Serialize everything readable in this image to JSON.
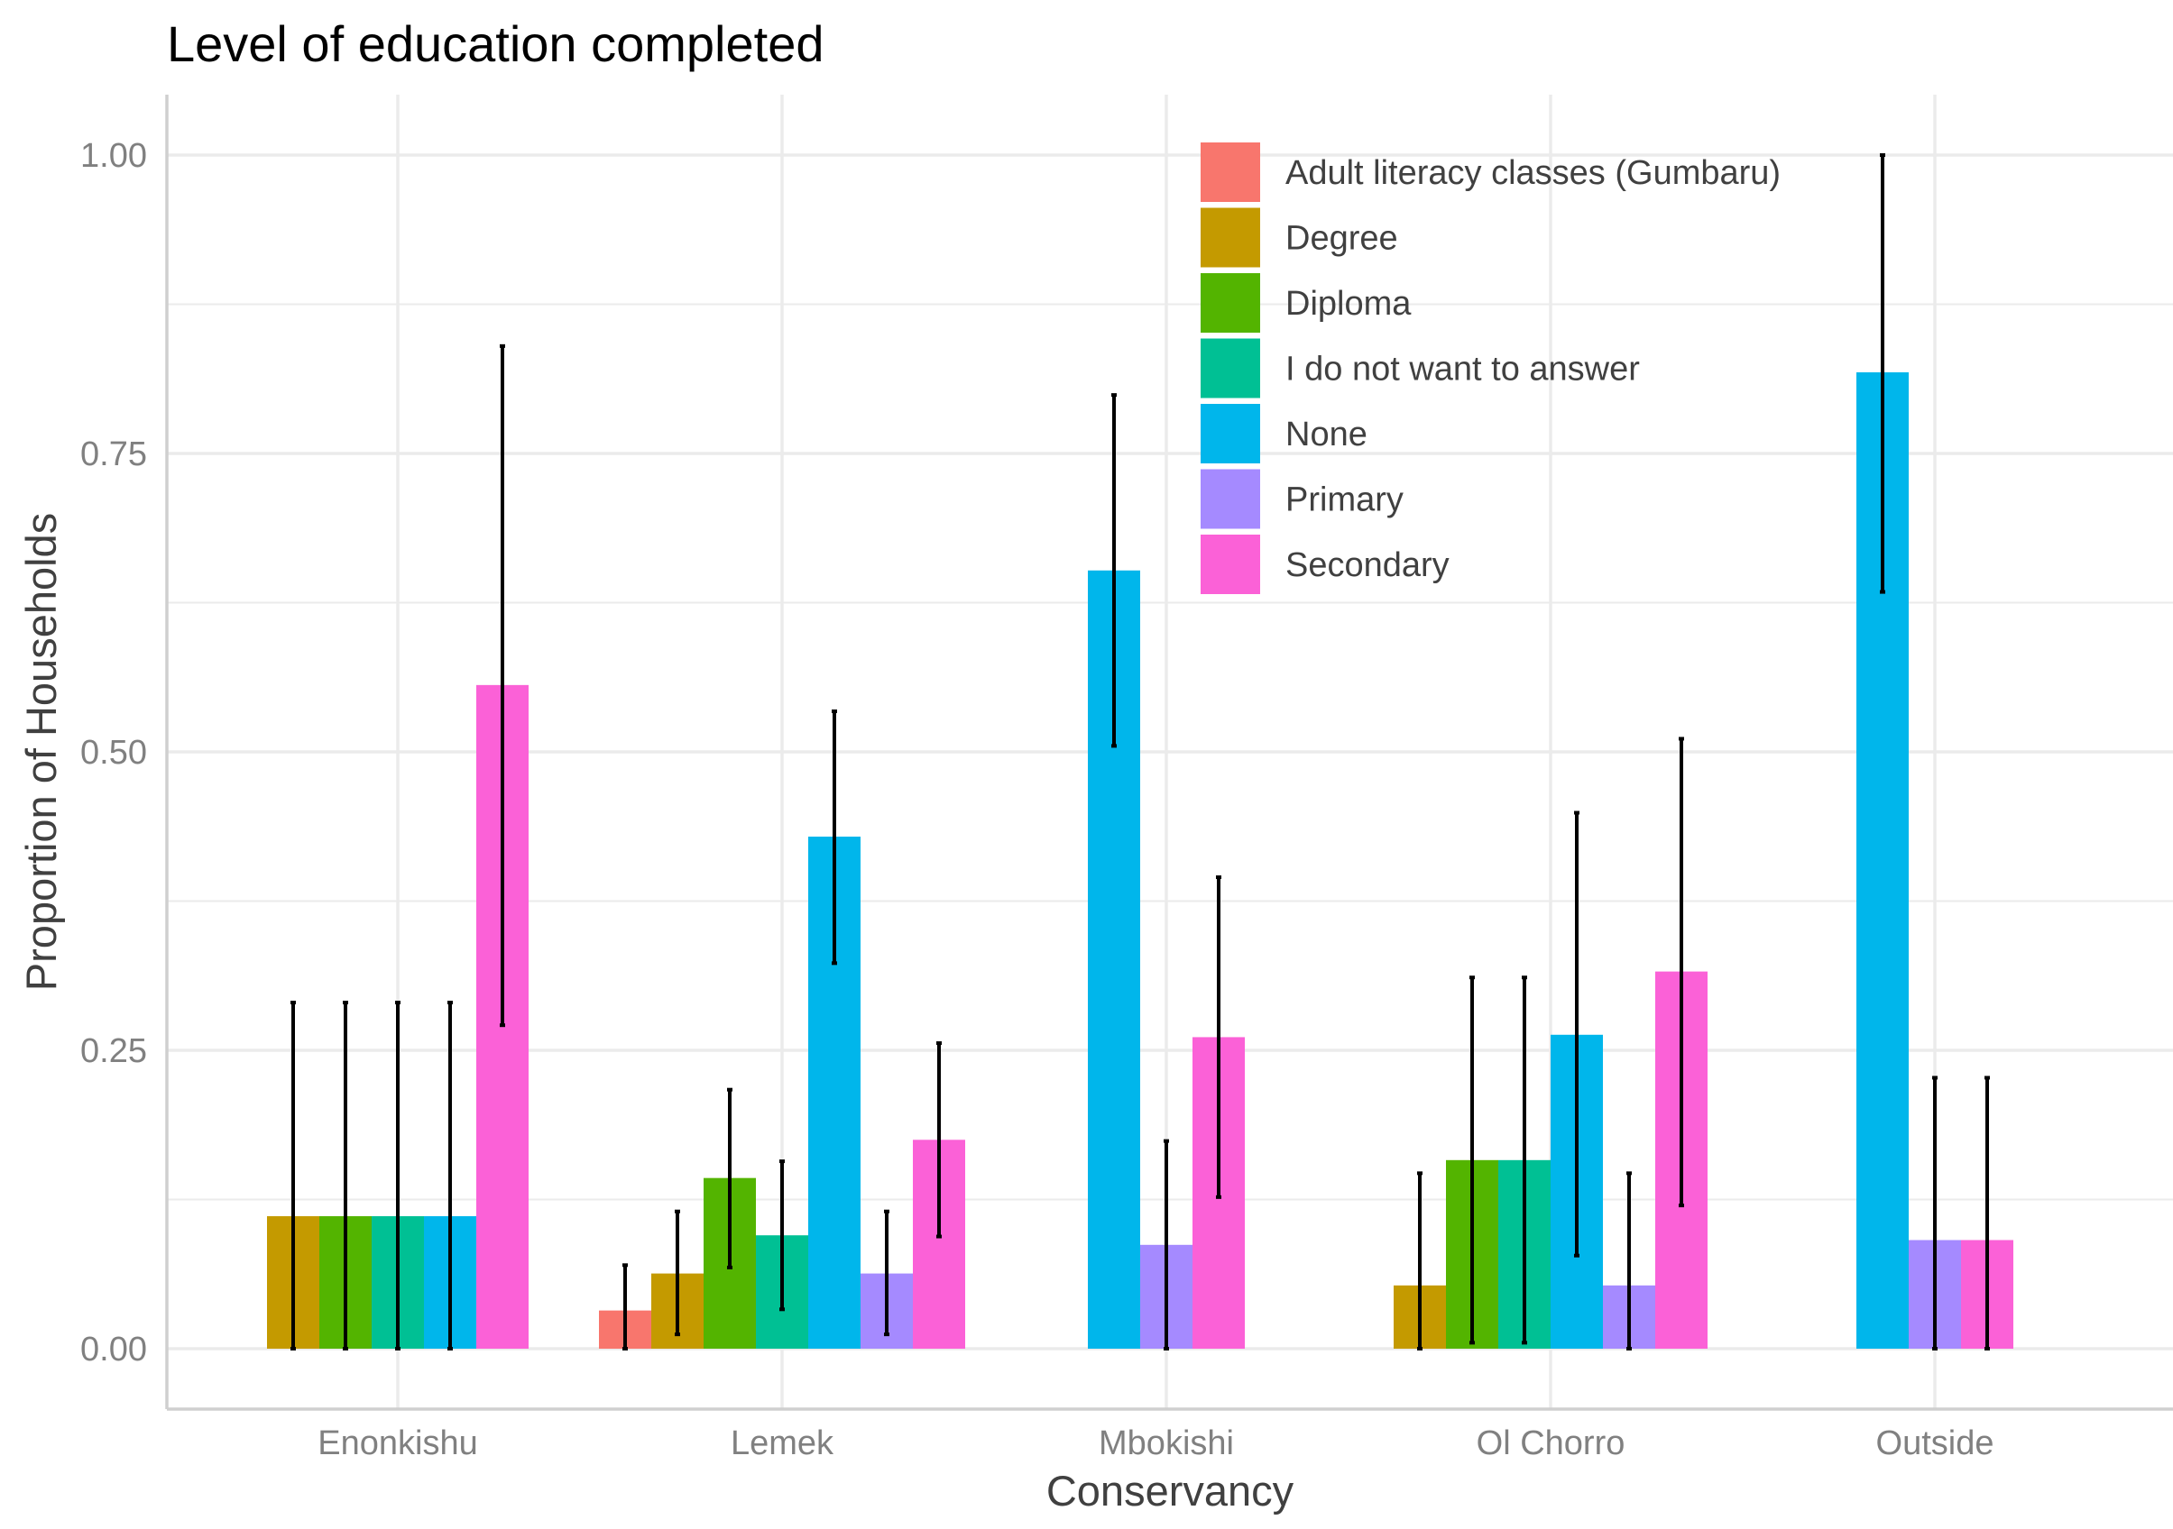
{
  "chart_data": {
    "type": "bar",
    "title": "Level of education completed",
    "xlabel": "Conservancy",
    "ylabel": "Proportion of Households",
    "categories": [
      "Enonkishu",
      "Lemek",
      "Mbokishi",
      "Ol Chorro",
      "Outside"
    ],
    "ylim": [
      -0.05,
      1.05
    ],
    "yticks": [
      "0.00",
      "0.25",
      "0.50",
      "0.75",
      "1.00"
    ],
    "grid": true,
    "legend_position": "top-right inside",
    "series": [
      {
        "name": "Adult literacy classes (Gumbaru)",
        "color": "#F8766D",
        "values": [
          null,
          0.032,
          null,
          null,
          null
        ],
        "lower": [
          null,
          0.0,
          null,
          null,
          null
        ],
        "upper": [
          null,
          0.07,
          null,
          null,
          null
        ]
      },
      {
        "name": "Degree",
        "color": "#C49A00",
        "values": [
          0.111,
          0.063,
          null,
          0.053,
          null
        ],
        "lower": [
          0.0,
          0.012,
          null,
          0.0,
          null
        ],
        "upper": [
          0.29,
          0.115,
          null,
          0.147,
          null
        ]
      },
      {
        "name": "Diploma",
        "color": "#53B400",
        "values": [
          0.111,
          0.143,
          null,
          0.158,
          null
        ],
        "lower": [
          0.0,
          0.068,
          null,
          0.005,
          null
        ],
        "upper": [
          0.29,
          0.217,
          null,
          0.311,
          null
        ]
      },
      {
        "name": "I do not want to answer",
        "color": "#00C094",
        "values": [
          0.111,
          0.095,
          null,
          0.158,
          null
        ],
        "lower": [
          0.0,
          0.033,
          null,
          0.005,
          null
        ],
        "upper": [
          0.29,
          0.157,
          null,
          0.311,
          null
        ]
      },
      {
        "name": "None",
        "color": "#00B6EB",
        "values": [
          0.111,
          0.429,
          0.652,
          0.263,
          0.818
        ],
        "lower": [
          0.0,
          0.323,
          0.505,
          0.078,
          0.634
        ],
        "upper": [
          0.29,
          0.534,
          0.799,
          0.449,
          1.0
        ]
      },
      {
        "name": "Primary",
        "color": "#A58AFF",
        "values": [
          null,
          0.063,
          0.087,
          0.053,
          0.091
        ],
        "lower": [
          null,
          0.012,
          0.0,
          0.0,
          0.0
        ],
        "upper": [
          null,
          0.115,
          0.174,
          0.147,
          0.227
        ]
      },
      {
        "name": "Secondary",
        "color": "#FB61D7",
        "values": [
          0.556,
          0.175,
          0.261,
          0.316,
          0.091
        ],
        "lower": [
          0.271,
          0.094,
          0.127,
          0.12,
          0.0
        ],
        "upper": [
          0.84,
          0.256,
          0.395,
          0.511,
          0.227
        ]
      }
    ],
    "error_bar_color": "#000000"
  }
}
